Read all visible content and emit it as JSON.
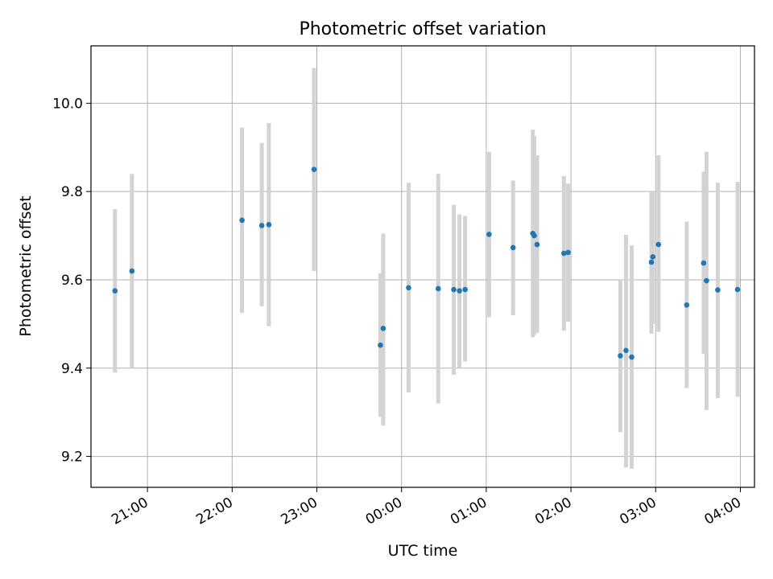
{
  "chart_data": {
    "type": "scatter",
    "title": "Photometric offset variation",
    "xlabel": "UTC time",
    "ylabel": "Photometric offset",
    "ylim": [
      9.13,
      10.13
    ],
    "xlim": [
      "20:20",
      "04:10"
    ],
    "grid": true,
    "x_ticks": [
      "21:00",
      "22:00",
      "23:00",
      "00:00",
      "01:00",
      "02:00",
      "03:00",
      "04:00"
    ],
    "y_ticks": [
      "9.2",
      "9.4",
      "9.6",
      "9.8",
      "10.0"
    ],
    "marker_color": "#1f77b4",
    "errorbar_color": "#d3d3d3",
    "points": [
      {
        "time": "20:37",
        "y": 9.575,
        "lo": 9.39,
        "hi": 9.76
      },
      {
        "time": "20:49",
        "y": 9.62,
        "lo": 9.4,
        "hi": 9.84
      },
      {
        "time": "22:07",
        "y": 9.735,
        "lo": 9.525,
        "hi": 9.945
      },
      {
        "time": "22:21",
        "y": 9.723,
        "lo": 9.54,
        "hi": 9.91
      },
      {
        "time": "22:26",
        "y": 9.725,
        "lo": 9.495,
        "hi": 9.955
      },
      {
        "time": "22:58",
        "y": 9.85,
        "lo": 9.62,
        "hi": 10.08
      },
      {
        "time": "23:45",
        "y": 9.452,
        "lo": 9.29,
        "hi": 9.615
      },
      {
        "time": "23:47",
        "y": 9.49,
        "lo": 9.27,
        "hi": 9.705
      },
      {
        "time": "00:05",
        "y": 9.582,
        "lo": 9.345,
        "hi": 9.82
      },
      {
        "time": "00:26",
        "y": 9.58,
        "lo": 9.32,
        "hi": 9.84
      },
      {
        "time": "00:37",
        "y": 9.578,
        "lo": 9.385,
        "hi": 9.77
      },
      {
        "time": "00:41",
        "y": 9.575,
        "lo": 9.4,
        "hi": 9.748
      },
      {
        "time": "00:45",
        "y": 9.578,
        "lo": 9.415,
        "hi": 9.745
      },
      {
        "time": "01:02",
        "y": 9.703,
        "lo": 9.515,
        "hi": 9.89
      },
      {
        "time": "01:19",
        "y": 9.673,
        "lo": 9.52,
        "hi": 9.825
      },
      {
        "time": "01:33",
        "y": 9.705,
        "lo": 9.47,
        "hi": 9.94
      },
      {
        "time": "01:34",
        "y": 9.7,
        "lo": 9.475,
        "hi": 9.925
      },
      {
        "time": "01:36",
        "y": 9.68,
        "lo": 9.48,
        "hi": 9.882
      },
      {
        "time": "01:55",
        "y": 9.66,
        "lo": 9.485,
        "hi": 9.835
      },
      {
        "time": "01:58",
        "y": 9.662,
        "lo": 9.505,
        "hi": 9.818
      },
      {
        "time": "02:35",
        "y": 9.428,
        "lo": 9.255,
        "hi": 9.6
      },
      {
        "time": "02:39",
        "y": 9.44,
        "lo": 9.175,
        "hi": 9.702
      },
      {
        "time": "02:43",
        "y": 9.425,
        "lo": 9.172,
        "hi": 9.678
      },
      {
        "time": "02:57",
        "y": 9.64,
        "lo": 9.478,
        "hi": 9.802
      },
      {
        "time": "02:58",
        "y": 9.652,
        "lo": 9.5,
        "hi": 9.8
      },
      {
        "time": "03:02",
        "y": 9.68,
        "lo": 9.482,
        "hi": 9.882
      },
      {
        "time": "03:22",
        "y": 9.543,
        "lo": 9.355,
        "hi": 9.732
      },
      {
        "time": "03:34",
        "y": 9.638,
        "lo": 9.432,
        "hi": 9.845
      },
      {
        "time": "03:36",
        "y": 9.598,
        "lo": 9.305,
        "hi": 9.89
      },
      {
        "time": "03:44",
        "y": 9.577,
        "lo": 9.332,
        "hi": 9.82
      },
      {
        "time": "03:58",
        "y": 9.578,
        "lo": 9.335,
        "hi": 9.822
      }
    ]
  }
}
